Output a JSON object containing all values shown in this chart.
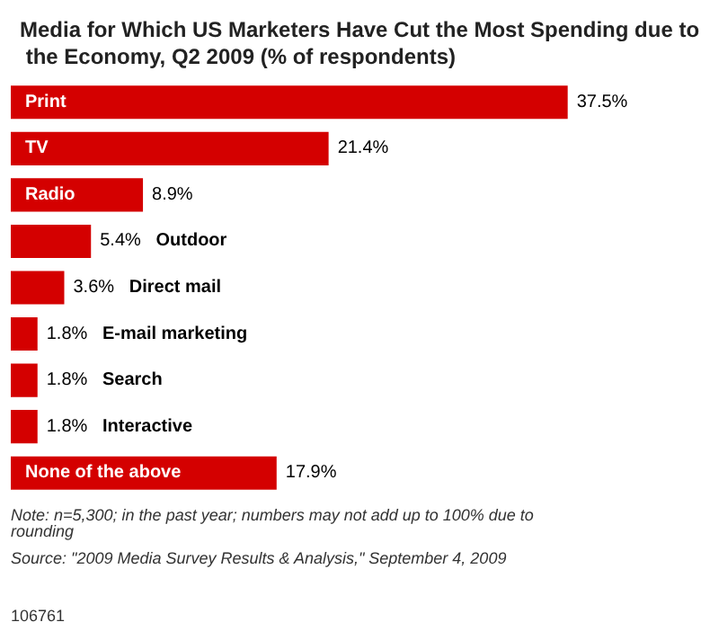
{
  "chart_data": {
    "type": "bar",
    "orientation": "horizontal",
    "title": "Media for Which US Marketers Have Cut the Most Spending due to the Economy, Q2 2009 (% of respondents)",
    "categories": [
      "Print",
      "TV",
      "Radio",
      "Outdoor",
      "Direct mail",
      "E-mail marketing",
      "Search",
      "Interactive",
      "None of the above"
    ],
    "values": [
      37.5,
      21.4,
      8.9,
      5.4,
      3.6,
      1.8,
      1.8,
      1.8,
      17.9
    ],
    "value_labels": [
      "37.5%",
      "21.4%",
      "8.9%",
      "5.4%",
      "3.6%",
      "1.8%",
      "1.8%",
      "1.8%",
      "17.9%"
    ],
    "color": "#d40000",
    "annotations": [
      "Note: n=5,300; in the past year; numbers may not add up to 100% due to rounding",
      "Source: \"2009 Media Survey Results & Analysis,\" September 4, 2009",
      "106761"
    ]
  }
}
